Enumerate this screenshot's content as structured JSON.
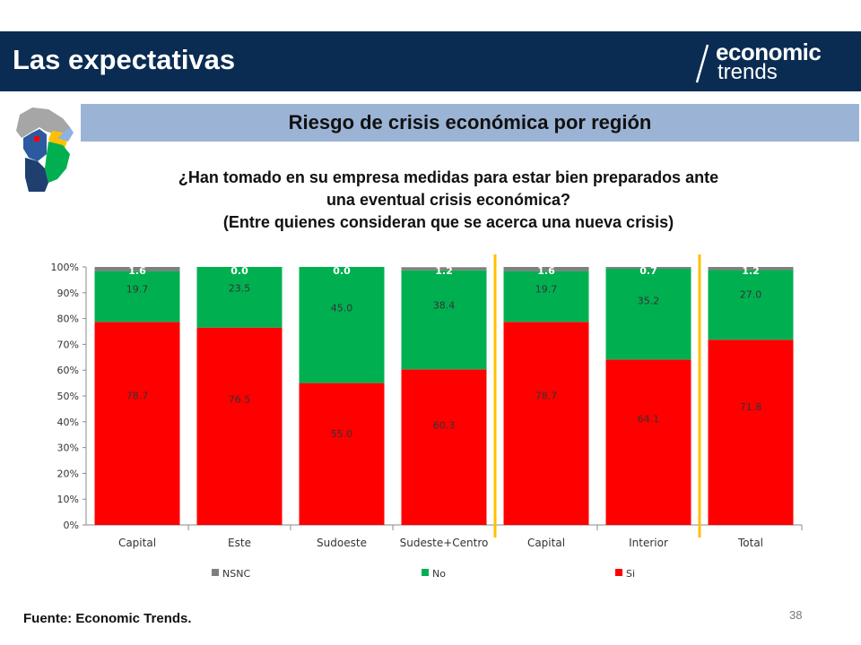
{
  "header": {
    "title": "Las expectativas",
    "logo_line1": "economic",
    "logo_line2": "trends",
    "background": "#0a2c52"
  },
  "subtitle": "Riesgo de crisis económica por región",
  "question": {
    "line1": "¿Han tomado en su empresa medidas para estar bien preparados ante",
    "line2": "una eventual crisis económica?",
    "line3": "(Entre quienes consideran que se acerca una nueva crisis)"
  },
  "chart_data": {
    "type": "bar",
    "stacked": true,
    "percent_axis": true,
    "categories": [
      "Capital",
      "Este",
      "Sudoeste",
      "Sudeste+Centro",
      "Capital",
      "Interior",
      "Total"
    ],
    "series": [
      {
        "name": "Si",
        "color": "#ff0000",
        "values": [
          78.7,
          76.5,
          55.0,
          60.3,
          78.7,
          64.1,
          71.8
        ],
        "labels": [
          "78.7",
          "76.5",
          "55.0",
          "60.3",
          "78.7",
          "64.1",
          "71.8"
        ]
      },
      {
        "name": "No",
        "color": "#00b050",
        "values": [
          19.7,
          23.5,
          45.0,
          38.4,
          19.7,
          35.2,
          27.0
        ],
        "labels": [
          "19.7",
          "23.5",
          "45.0",
          "38.4",
          "19.7",
          "35.2",
          "27.0"
        ]
      },
      {
        "name": "NSNC",
        "color": "#7f7f7f",
        "values": [
          1.6,
          0.0,
          0.0,
          1.2,
          1.6,
          0.7,
          1.2
        ],
        "labels": [
          "1.6",
          "0.0",
          "0.0",
          "1.2",
          "1.6",
          "0.7",
          "1.2"
        ]
      }
    ],
    "y_ticks": [
      "0%",
      "10%",
      "20%",
      "30%",
      "40%",
      "50%",
      "60%",
      "70%",
      "80%",
      "90%",
      "100%"
    ],
    "ylim": [
      0,
      100
    ],
    "legend": [
      "NSNC",
      "No",
      "Si"
    ],
    "legend_position": "bottom",
    "separators_after_category": [
      3,
      5
    ],
    "separator_color": "#ffc000"
  },
  "footer": {
    "source": "Fuente: Economic Trends.",
    "page_number": "38"
  }
}
